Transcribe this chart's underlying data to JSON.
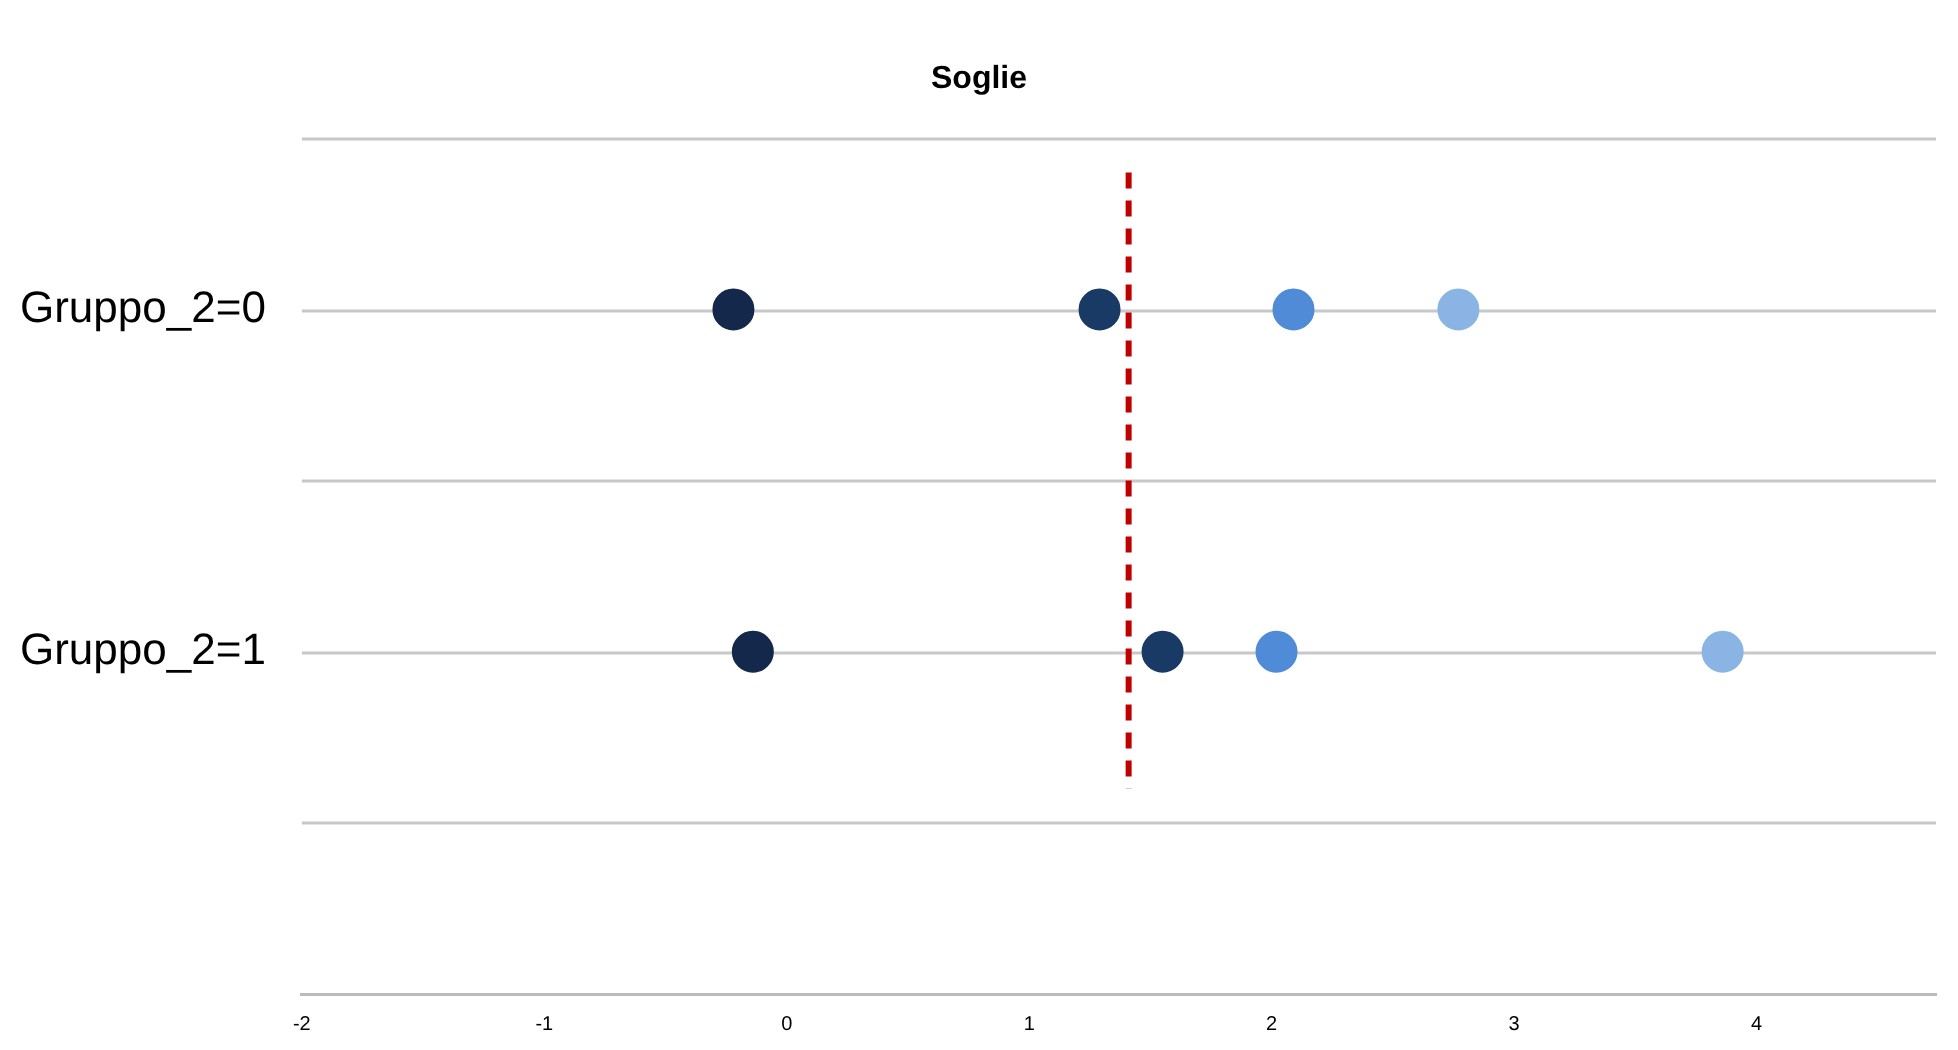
{
  "chart_data": {
    "type": "scatter",
    "title": "Soglie",
    "categories": [
      "Gruppo_2=0",
      "Gruppo_2=1"
    ],
    "series": [
      {
        "color": "#13284a",
        "values": [
          -0.22,
          -0.14
        ]
      },
      {
        "color": "#1a3a66",
        "values": [
          1.29,
          1.55
        ]
      },
      {
        "color": "#4f8bd6",
        "values": [
          2.09,
          2.02
        ]
      },
      {
        "color": "#8ab4e4",
        "values": [
          2.77,
          3.86
        ]
      }
    ],
    "orientation": "horizontal",
    "xlim": [
      -2,
      4.74
    ],
    "xticks": [
      -2,
      -1,
      0,
      1,
      2,
      3,
      4
    ],
    "grid": "y",
    "marker": "circle",
    "legend": false,
    "ref_lines": [
      {
        "axis": "x",
        "value": 1.41,
        "color": "#c00000",
        "line_style": "dashed"
      }
    ]
  }
}
